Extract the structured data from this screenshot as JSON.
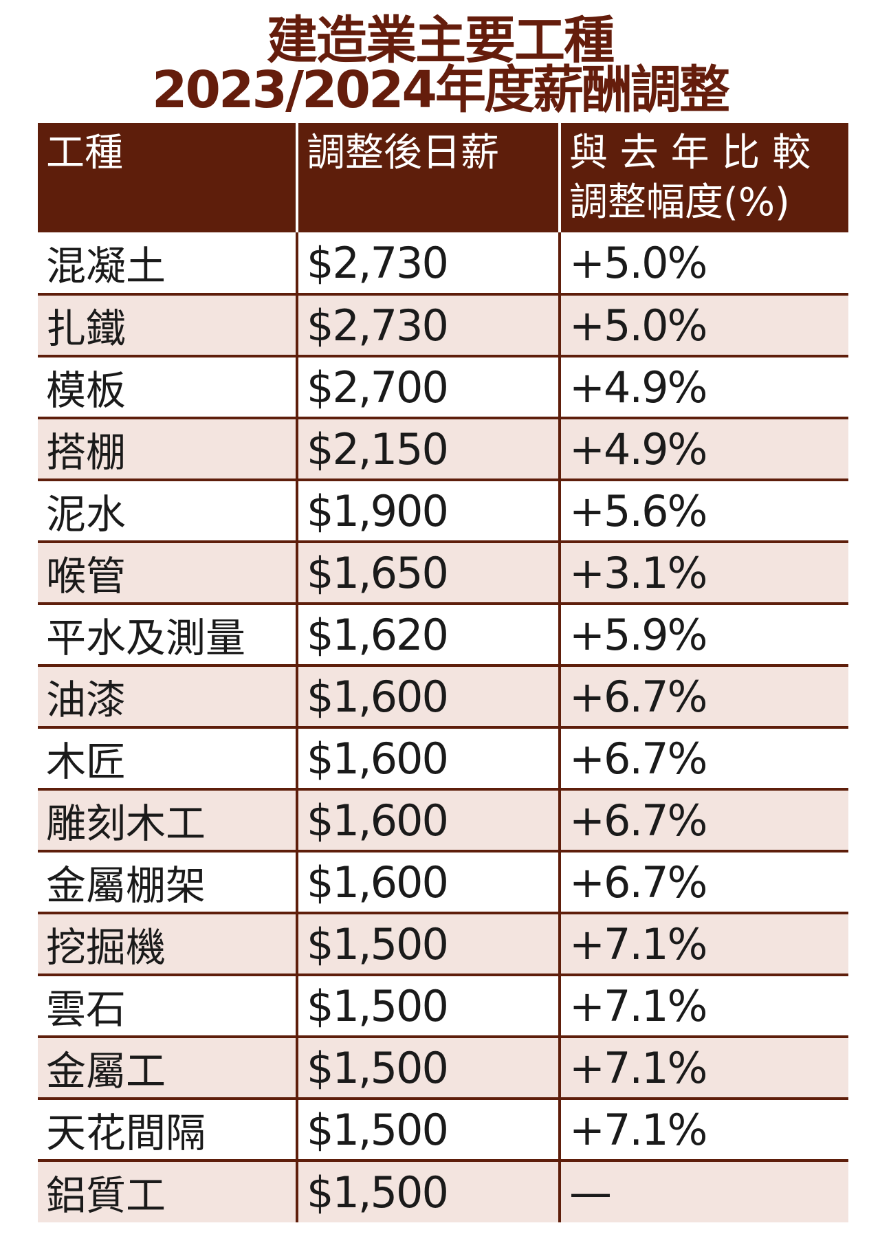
{
  "title": {
    "line1": "建造業主要工種",
    "line2": "2023/2024年度薪酬調整"
  },
  "colors": {
    "header_bg": "#5e1e0b",
    "title": "#651d0c",
    "alt_row": "#f3e4df"
  },
  "table": {
    "headers": [
      "工種",
      "調整後日薪",
      "與去年比較調整幅度(%)"
    ],
    "header_lines": {
      "col3_line1": "與 去 年 比 較",
      "col3_line2": "調整幅度(%)"
    },
    "rows": [
      [
        "混凝土",
        "$2,730",
        "+5.0%"
      ],
      [
        "扎鐵",
        "$2,730",
        "+5.0%"
      ],
      [
        "模板",
        "$2,700",
        "+4.9%"
      ],
      [
        "搭棚",
        "$2,150",
        "+4.9%"
      ],
      [
        "泥水",
        "$1,900",
        "+5.6%"
      ],
      [
        "喉管",
        "$1,650",
        "+3.1%"
      ],
      [
        "平水及測量",
        "$1,620",
        "+5.9%"
      ],
      [
        "油漆",
        "$1,600",
        "+6.7%"
      ],
      [
        "木匠",
        "$1,600",
        "+6.7%"
      ],
      [
        "雕刻木工",
        "$1,600",
        "+6.7%"
      ],
      [
        "金屬棚架",
        "$1,600",
        "+6.7%"
      ],
      [
        "挖掘機",
        "$1,500",
        "+7.1%"
      ],
      [
        "雲石",
        "$1,500",
        "+7.1%"
      ],
      [
        "金屬工",
        "$1,500",
        "+7.1%"
      ],
      [
        "天花間隔",
        "$1,500",
        "+7.1%"
      ],
      [
        "鋁質工",
        "$1,500",
        "—"
      ]
    ]
  }
}
